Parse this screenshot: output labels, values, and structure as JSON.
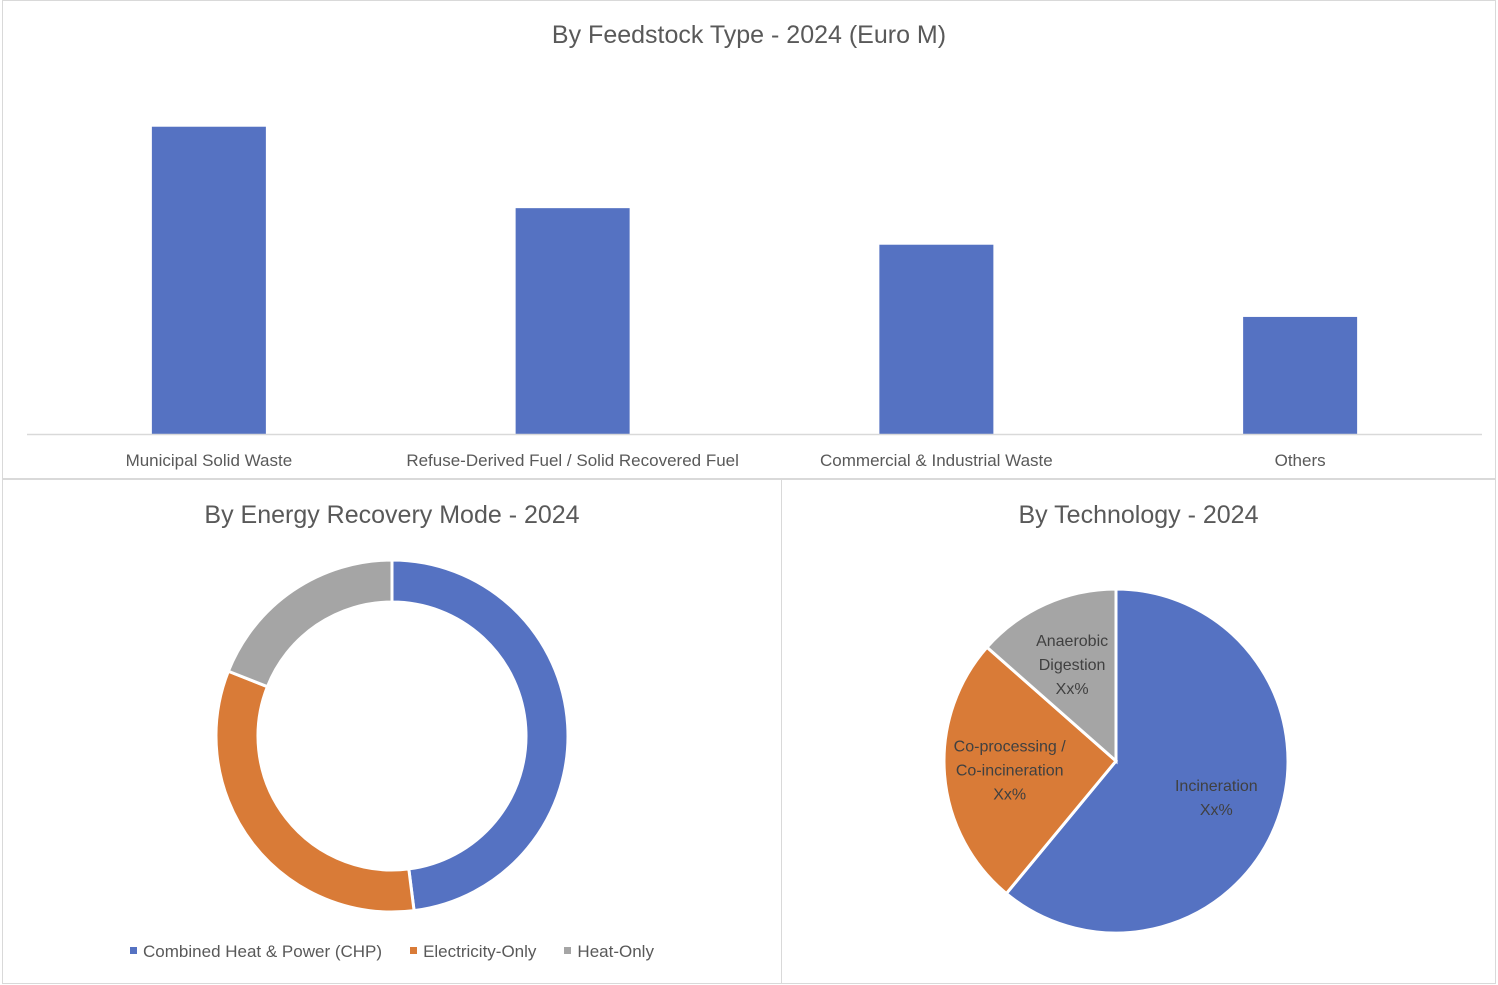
{
  "chart_data": [
    {
      "type": "bar",
      "title": "By Feedstock Type - 2024 (Euro M)",
      "categories": [
        "Municipal Solid Waste",
        "Refuse-Derived Fuel / Solid Recovered Fuel",
        "Commercial & Industrial Waste",
        "Others"
      ],
      "values": [
        100,
        73.5,
        61.6,
        38.1
      ],
      "ylim": [
        0,
        110
      ],
      "grid": false,
      "color": "#5572c2"
    },
    {
      "type": "pie",
      "subtype": "donut",
      "title": "By Energy Recovery Mode - 2024",
      "series": [
        {
          "name": "Combined Heat & Power (CHP)",
          "value": 48,
          "color": "#5572c2"
        },
        {
          "name": "Electricity-Only",
          "value": 33,
          "color": "#d97b37"
        },
        {
          "name": "Heat-Only",
          "value": 19,
          "color": "#a5a5a5"
        }
      ],
      "legend": "bottom"
    },
    {
      "type": "pie",
      "title": "By Technology - 2024",
      "series": [
        {
          "name": "Incineration",
          "value": 61,
          "color": "#5572c2",
          "label_lines": [
            "Incineration",
            "Xx%"
          ]
        },
        {
          "name": "Co-processing / Co-incineration",
          "value": 25.5,
          "color": "#d97b37",
          "label_lines": [
            "Co-processing /",
            "Co-incineration",
            "Xx%"
          ]
        },
        {
          "name": "Anaerobic Digestion",
          "value": 13.5,
          "color": "#a5a5a5",
          "label_lines": [
            "Anaerobic",
            "Digestion",
            "Xx%"
          ]
        }
      ]
    }
  ]
}
